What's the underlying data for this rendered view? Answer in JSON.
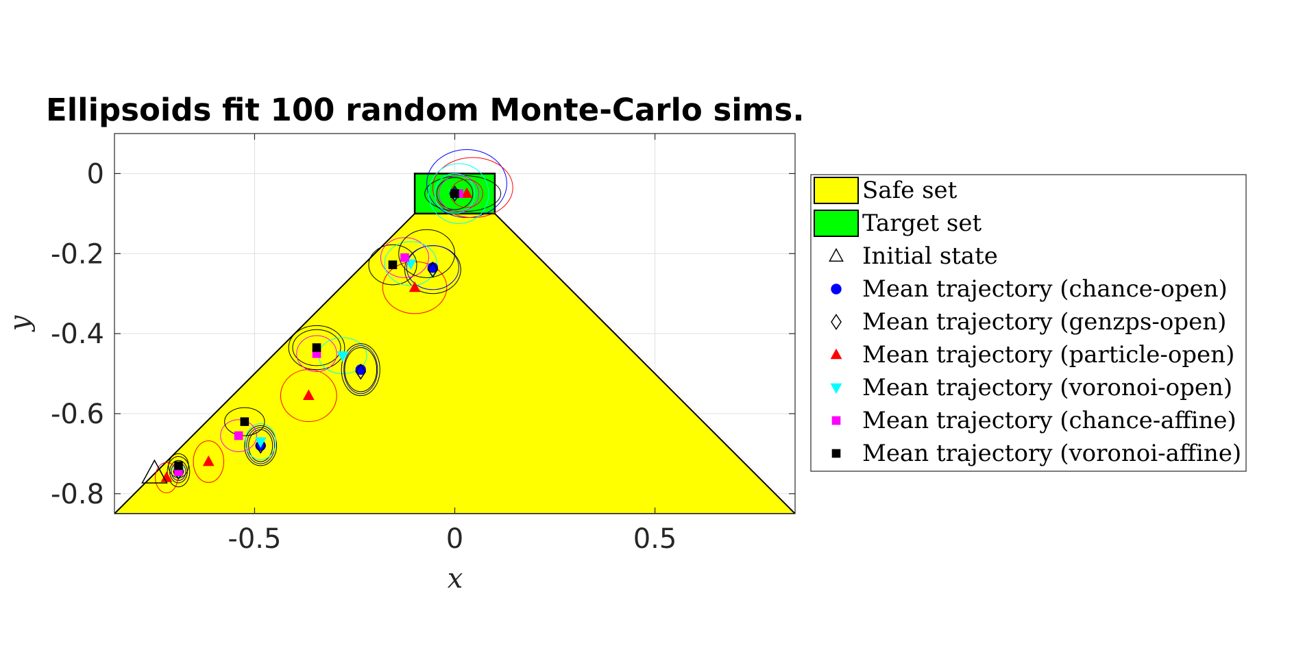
{
  "chart_data": {
    "type": "scatter",
    "title": "Ellipsoids fit 100 random Monte-Carlo sims.",
    "xlabel": "x",
    "ylabel": "y",
    "xlim": [
      -0.85,
      0.85
    ],
    "ylim": [
      -0.85,
      0.1
    ],
    "xticks": [
      -0.5,
      0,
      0.5
    ],
    "xtick_labels": [
      "-0.5",
      "0",
      "0.5"
    ],
    "yticks": [
      0,
      -0.2,
      -0.4,
      -0.6,
      -0.8
    ],
    "ytick_labels": [
      "0",
      "-0.2",
      "-0.4",
      "-0.6",
      "-0.8"
    ],
    "grid": true,
    "legend_position": "outside-right",
    "safe_set": {
      "name": "Safe set",
      "color": "#ffff00",
      "polygon": [
        [
          -0.85,
          -0.85
        ],
        [
          0.85,
          -0.85
        ],
        [
          0.1,
          -0.1
        ],
        [
          -0.1,
          -0.1
        ]
      ]
    },
    "target_set": {
      "name": "Target set",
      "color": "#00ff00",
      "xrange": [
        -0.1,
        0.1
      ],
      "yrange": [
        -0.1,
        0
      ]
    },
    "initial_state": {
      "name": "Initial state",
      "marker": "triangle-open",
      "color": "#000000",
      "x": -0.75,
      "y": -0.75
    },
    "series": [
      {
        "name": "Mean trajectory (chance-open)",
        "marker": "circle",
        "color": "#0000ff",
        "points": [
          [
            -0.69,
            -0.745
          ],
          [
            -0.485,
            -0.68
          ],
          [
            -0.235,
            -0.49
          ],
          [
            -0.055,
            -0.235
          ],
          [
            0.0,
            -0.05
          ]
        ]
      },
      {
        "name": "Mean trajectory (genzps-open)",
        "marker": "diamond-open",
        "color": "#000000",
        "points": [
          [
            -0.69,
            -0.745
          ],
          [
            -0.485,
            -0.68
          ],
          [
            -0.235,
            -0.495
          ],
          [
            -0.055,
            -0.24
          ],
          [
            0.0,
            -0.05
          ]
        ]
      },
      {
        "name": "Mean trajectory (particle-open)",
        "marker": "triangle-up",
        "color": "#ff0000",
        "points": [
          [
            -0.72,
            -0.76
          ],
          [
            -0.615,
            -0.72
          ],
          [
            -0.365,
            -0.555
          ],
          [
            -0.1,
            -0.285
          ],
          [
            0.03,
            -0.05
          ]
        ]
      },
      {
        "name": "Mean trajectory (voronoi-open)",
        "marker": "triangle-down",
        "color": "#00ffff",
        "points": [
          [
            -0.69,
            -0.745
          ],
          [
            -0.485,
            -0.67
          ],
          [
            -0.28,
            -0.455
          ],
          [
            -0.11,
            -0.225
          ],
          [
            0.0,
            -0.05
          ]
        ]
      },
      {
        "name": "Mean trajectory (chance-affine)",
        "marker": "square",
        "color": "#ff00ff",
        "points": [
          [
            -0.69,
            -0.745
          ],
          [
            -0.54,
            -0.655
          ],
          [
            -0.345,
            -0.45
          ],
          [
            -0.125,
            -0.21
          ],
          [
            0.01,
            -0.05
          ]
        ]
      },
      {
        "name": "Mean trajectory (voronoi-affine)",
        "marker": "square",
        "color": "#000000",
        "points": [
          [
            -0.69,
            -0.73
          ],
          [
            -0.525,
            -0.62
          ],
          [
            -0.345,
            -0.435
          ],
          [
            -0.155,
            -0.228
          ],
          [
            0.0,
            -0.05
          ]
        ]
      }
    ],
    "ellipses": [
      {
        "color": "#000000",
        "cx": -0.69,
        "cy": -0.745,
        "rx": 0.028,
        "ry": 0.038
      },
      {
        "color": "#000000",
        "cx": -0.69,
        "cy": -0.745,
        "rx": 0.022,
        "ry": 0.028
      },
      {
        "color": "#000000",
        "cx": -0.69,
        "cy": -0.73,
        "rx": 0.025,
        "ry": 0.03
      },
      {
        "color": "#0000ff",
        "cx": -0.69,
        "cy": -0.745,
        "rx": 0.018,
        "ry": 0.022
      },
      {
        "color": "#ff0000",
        "cx": -0.72,
        "cy": -0.76,
        "rx": 0.028,
        "ry": 0.038
      },
      {
        "color": "#ff0000",
        "cx": -0.615,
        "cy": -0.72,
        "rx": 0.038,
        "ry": 0.052
      },
      {
        "color": "#000000",
        "cx": -0.485,
        "cy": -0.68,
        "rx": 0.04,
        "ry": 0.05
      },
      {
        "color": "#000000",
        "cx": -0.485,
        "cy": -0.68,
        "rx": 0.03,
        "ry": 0.04
      },
      {
        "color": "#0000ff",
        "cx": -0.485,
        "cy": -0.68,
        "rx": 0.035,
        "ry": 0.045
      },
      {
        "color": "#00ffff",
        "cx": -0.485,
        "cy": -0.67,
        "rx": 0.038,
        "ry": 0.045
      },
      {
        "color": "#ff00ff",
        "cx": -0.54,
        "cy": -0.655,
        "rx": 0.045,
        "ry": 0.04
      },
      {
        "color": "#000000",
        "cx": -0.525,
        "cy": -0.62,
        "rx": 0.05,
        "ry": 0.035
      },
      {
        "color": "#ff0000",
        "cx": -0.365,
        "cy": -0.555,
        "rx": 0.07,
        "ry": 0.065
      },
      {
        "color": "#000000",
        "cx": -0.345,
        "cy": -0.435,
        "rx": 0.07,
        "ry": 0.055
      },
      {
        "color": "#000000",
        "cx": -0.345,
        "cy": -0.435,
        "rx": 0.06,
        "ry": 0.045
      },
      {
        "color": "#ff00ff",
        "cx": -0.345,
        "cy": -0.45,
        "rx": 0.05,
        "ry": 0.045
      },
      {
        "color": "#00ffff",
        "cx": -0.28,
        "cy": -0.455,
        "rx": 0.06,
        "ry": 0.045
      },
      {
        "color": "#000000",
        "cx": -0.235,
        "cy": -0.49,
        "rx": 0.048,
        "ry": 0.065
      },
      {
        "color": "#000000",
        "cx": -0.235,
        "cy": -0.49,
        "rx": 0.04,
        "ry": 0.055
      },
      {
        "color": "#0000ff",
        "cx": -0.235,
        "cy": -0.49,
        "rx": 0.042,
        "ry": 0.06
      },
      {
        "color": "#ff0000",
        "cx": -0.1,
        "cy": -0.285,
        "rx": 0.08,
        "ry": 0.065
      },
      {
        "color": "#000000",
        "cx": -0.055,
        "cy": -0.24,
        "rx": 0.07,
        "ry": 0.06
      },
      {
        "color": "#0000ff",
        "cx": -0.055,
        "cy": -0.235,
        "rx": 0.065,
        "ry": 0.055
      },
      {
        "color": "#000000",
        "cx": -0.155,
        "cy": -0.228,
        "rx": 0.06,
        "ry": 0.05
      },
      {
        "color": "#ff00ff",
        "cx": -0.125,
        "cy": -0.21,
        "rx": 0.06,
        "ry": 0.05
      },
      {
        "color": "#00ffff",
        "cx": -0.11,
        "cy": -0.225,
        "rx": 0.065,
        "ry": 0.055
      },
      {
        "color": "#000000",
        "cx": -0.07,
        "cy": -0.2,
        "rx": 0.07,
        "ry": 0.06
      },
      {
        "color": "#0000ff",
        "cx": 0.03,
        "cy": -0.025,
        "rx": 0.1,
        "ry": 0.085
      },
      {
        "color": "#ff0000",
        "cx": 0.045,
        "cy": -0.035,
        "rx": 0.1,
        "ry": 0.075
      },
      {
        "color": "#000000",
        "cx": 0.02,
        "cy": -0.05,
        "rx": 0.095,
        "ry": 0.045
      },
      {
        "color": "#00ffff",
        "cx": 0.01,
        "cy": -0.05,
        "rx": 0.075,
        "ry": 0.075
      },
      {
        "color": "#00ffff",
        "cx": 0.0,
        "cy": -0.05,
        "rx": 0.05,
        "ry": 0.05
      },
      {
        "color": "#000000",
        "cx": 0.0,
        "cy": -0.05,
        "rx": 0.045,
        "ry": 0.04
      },
      {
        "color": "#ff00ff",
        "cx": 0.01,
        "cy": -0.05,
        "rx": 0.05,
        "ry": 0.045
      },
      {
        "color": "#ff0000",
        "cx": 0.03,
        "cy": -0.05,
        "rx": 0.04,
        "ry": 0.035
      }
    ]
  }
}
